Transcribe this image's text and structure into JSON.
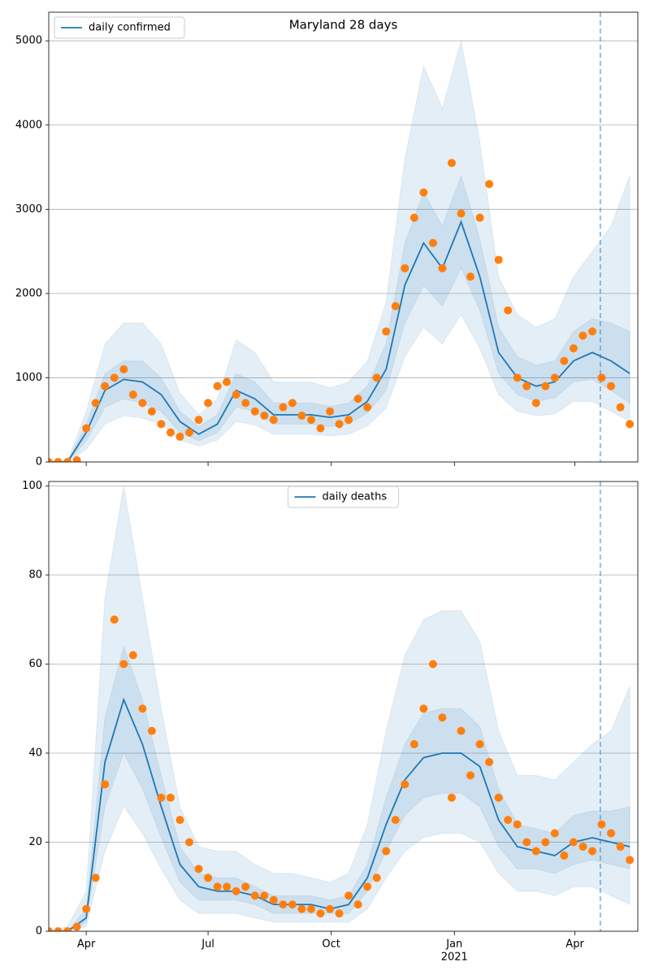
{
  "chart_data": [
    {
      "type": "line",
      "title": "Maryland 28 days",
      "xlim": [
        0,
        440
      ],
      "xticks": [
        28,
        119,
        211,
        303,
        393
      ],
      "ylim": [
        0,
        5340
      ],
      "yticks": [
        0,
        1000,
        2000,
        3000,
        4000,
        5000
      ],
      "grid": true,
      "legend": "upper left",
      "vline_x": 412,
      "x": [
        0,
        14,
        28,
        42,
        56,
        70,
        84,
        98,
        112,
        126,
        140,
        154,
        168,
        182,
        196,
        210,
        224,
        238,
        252,
        266,
        280,
        294,
        308,
        322,
        336,
        350,
        364,
        378,
        392,
        406,
        420,
        434
      ],
      "series": [
        {
          "name": "daily confirmed",
          "color": "#1f77b4",
          "values": [
            0,
            0,
            350,
            850,
            980,
            950,
            800,
            480,
            330,
            450,
            850,
            750,
            560,
            560,
            560,
            530,
            560,
            720,
            1100,
            2100,
            2600,
            2300,
            2850,
            2200,
            1300,
            1000,
            900,
            950,
            1200,
            1300,
            1200,
            1050
          ]
        }
      ],
      "bands": [
        {
          "color": "#1f77b4",
          "lower": [
            0,
            0,
            150,
            450,
            550,
            520,
            450,
            260,
            190,
            260,
            480,
            440,
            330,
            330,
            330,
            310,
            330,
            430,
            640,
            1250,
            1600,
            1400,
            1750,
            1350,
            800,
            600,
            550,
            570,
            720,
            720,
            600,
            480
          ],
          "upper": [
            0,
            10,
            600,
            1400,
            1650,
            1650,
            1400,
            820,
            560,
            750,
            1450,
            1300,
            950,
            950,
            950,
            880,
            950,
            1200,
            1900,
            3600,
            4700,
            4200,
            5000,
            3800,
            2200,
            1750,
            1600,
            1700,
            2200,
            2500,
            2800,
            3400
          ]
        },
        {
          "color": "#1f77b4",
          "lower": [
            0,
            0,
            250,
            650,
            750,
            700,
            600,
            350,
            250,
            350,
            650,
            600,
            450,
            450,
            450,
            420,
            450,
            580,
            850,
            1650,
            2100,
            1850,
            2300,
            1800,
            1050,
            800,
            720,
            760,
            950,
            980,
            850,
            700
          ],
          "upper": [
            0,
            0,
            450,
            1050,
            1200,
            1200,
            1000,
            600,
            420,
            560,
            1050,
            950,
            700,
            700,
            700,
            660,
            700,
            900,
            1400,
            2600,
            3200,
            2800,
            3400,
            2650,
            1600,
            1250,
            1150,
            1200,
            1550,
            1700,
            1650,
            1550
          ]
        }
      ],
      "points": {
        "color": "#ff7f0e",
        "x": [
          0,
          7,
          14,
          21,
          28,
          35,
          42,
          49,
          56,
          63,
          70,
          77,
          84,
          91,
          98,
          105,
          112,
          119,
          126,
          133,
          140,
          147,
          154,
          161,
          168,
          175,
          182,
          189,
          196,
          203,
          210,
          217,
          224,
          231,
          238,
          245,
          252,
          259,
          266,
          273,
          280,
          287,
          294,
          301,
          308,
          315,
          322,
          329,
          336,
          343,
          350,
          357,
          364,
          371,
          378,
          385,
          392,
          399,
          406,
          413,
          420,
          427,
          434
        ],
        "values": [
          0,
          0,
          0,
          20,
          400,
          700,
          900,
          1000,
          1100,
          800,
          700,
          600,
          450,
          350,
          300,
          350,
          500,
          700,
          900,
          950,
          800,
          700,
          600,
          550,
          500,
          650,
          700,
          550,
          500,
          400,
          600,
          450,
          500,
          750,
          650,
          1000,
          1550,
          1850,
          2300,
          2900,
          3200,
          2600,
          2300,
          3550,
          2950,
          2200,
          2900,
          3300,
          2400,
          1800,
          1000,
          900,
          700,
          900,
          1000,
          1200,
          1350,
          1500,
          1550,
          1000,
          900,
          650,
          450
        ]
      }
    },
    {
      "type": "line",
      "xlim": [
        0,
        440
      ],
      "xticks": [
        {
          "value": 28,
          "label": "Apr"
        },
        {
          "value": 119,
          "label": "Jul"
        },
        {
          "value": 211,
          "label": "Oct"
        },
        {
          "value": 303,
          "label": "Jan",
          "sublabel": "2021"
        },
        {
          "value": 393,
          "label": "Apr"
        }
      ],
      "ylim": [
        0,
        101
      ],
      "yticks": [
        0,
        20,
        40,
        60,
        80,
        100
      ],
      "grid": true,
      "legend": "upper center",
      "vline_x": 412,
      "x": [
        0,
        14,
        28,
        42,
        56,
        70,
        84,
        98,
        112,
        126,
        140,
        154,
        168,
        182,
        196,
        210,
        224,
        238,
        252,
        266,
        280,
        294,
        308,
        322,
        336,
        350,
        364,
        378,
        392,
        406,
        420,
        434
      ],
      "series": [
        {
          "name": "daily deaths",
          "color": "#1f77b4",
          "values": [
            0,
            0,
            3,
            38,
            52,
            42,
            28,
            15,
            10,
            9,
            9,
            8,
            6,
            6,
            6,
            5,
            6,
            12,
            24,
            34,
            39,
            40,
            40,
            37,
            25,
            19,
            18,
            17,
            20,
            21,
            20,
            19
          ]
        }
      ],
      "bands": [
        {
          "color": "#1f77b4",
          "lower": [
            0,
            0,
            1,
            18,
            28,
            22,
            14,
            7,
            4,
            4,
            4,
            3,
            2,
            2,
            2,
            2,
            2,
            5,
            12,
            18,
            21,
            22,
            22,
            20,
            13,
            9,
            9,
            8,
            10,
            10,
            8,
            6
          ],
          "upper": [
            0,
            1,
            9,
            75,
            100,
            75,
            50,
            28,
            19,
            18,
            18,
            15,
            13,
            13,
            12,
            11,
            13,
            24,
            45,
            62,
            70,
            72,
            72,
            65,
            45,
            35,
            35,
            34,
            38,
            42,
            45,
            55
          ]
        },
        {
          "color": "#1f77b4",
          "lower": [
            0,
            0,
            2,
            28,
            40,
            32,
            21,
            11,
            7,
            7,
            7,
            6,
            4,
            4,
            4,
            4,
            4,
            9,
            18,
            26,
            30,
            31,
            31,
            28,
            19,
            14,
            14,
            13,
            15,
            16,
            15,
            14
          ],
          "upper": [
            0,
            0,
            5,
            48,
            64,
            52,
            35,
            19,
            13,
            12,
            12,
            10,
            8,
            8,
            8,
            7,
            8,
            15,
            30,
            42,
            49,
            50,
            50,
            46,
            32,
            24,
            23,
            22,
            26,
            27,
            27,
            28
          ]
        }
      ],
      "points": {
        "color": "#ff7f0e",
        "x": [
          0,
          7,
          14,
          21,
          28,
          35,
          42,
          49,
          56,
          63,
          70,
          77,
          84,
          91,
          98,
          105,
          112,
          119,
          126,
          133,
          140,
          147,
          154,
          161,
          168,
          175,
          182,
          189,
          196,
          203,
          210,
          217,
          224,
          231,
          238,
          245,
          252,
          259,
          266,
          273,
          280,
          287,
          294,
          301,
          308,
          315,
          322,
          329,
          336,
          343,
          350,
          357,
          364,
          371,
          378,
          385,
          392,
          399,
          406,
          413,
          420,
          427,
          434
        ],
        "values": [
          0,
          0,
          0,
          1,
          5,
          12,
          33,
          70,
          60,
          62,
          50,
          45,
          30,
          30,
          25,
          20,
          14,
          12,
          10,
          10,
          9,
          10,
          8,
          8,
          7,
          6,
          6,
          5,
          5,
          4,
          5,
          4,
          8,
          6,
          10,
          12,
          18,
          25,
          33,
          42,
          50,
          60,
          48,
          30,
          45,
          35,
          42,
          38,
          30,
          25,
          24,
          20,
          18,
          20,
          22,
          17,
          20,
          19,
          18,
          24,
          22,
          19,
          16
        ]
      }
    }
  ]
}
